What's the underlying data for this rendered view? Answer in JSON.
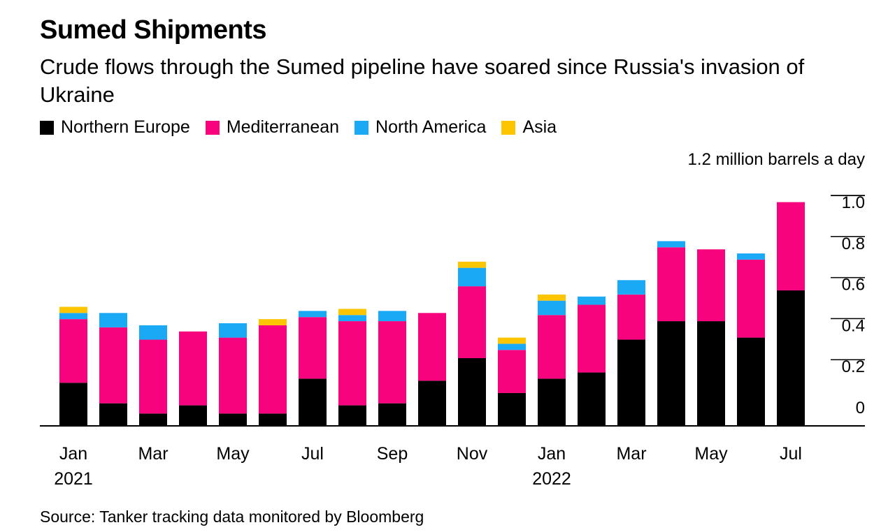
{
  "chart_data": {
    "type": "bar",
    "stacked": true,
    "title": "Sumed Shipments",
    "subtitle": "Crude flows through the Sumed pipeline have soared since Russia's invasion of Ukraine",
    "unit_label": "1.2 million barrels a day",
    "source": "Source: Tanker tracking data monitored by Bloomberg",
    "categories": [
      "Jan 2021",
      "Feb 2021",
      "Mar 2021",
      "Apr 2021",
      "May 2021",
      "Jun 2021",
      "Jul 2021",
      "Aug 2021",
      "Sep 2021",
      "Oct 2021",
      "Nov 2021",
      "Dec 2021",
      "Jan 2022",
      "Feb 2022",
      "Mar 2022",
      "Apr 2022",
      "May 2022",
      "Jun 2022",
      "Jul 2022"
    ],
    "x_tick_labels": [
      {
        "index": 0,
        "label": "Jan",
        "year": "2021"
      },
      {
        "index": 2,
        "label": "Mar",
        "year": ""
      },
      {
        "index": 4,
        "label": "May",
        "year": ""
      },
      {
        "index": 6,
        "label": "Jul",
        "year": ""
      },
      {
        "index": 8,
        "label": "Sep",
        "year": ""
      },
      {
        "index": 10,
        "label": "Nov",
        "year": ""
      },
      {
        "index": 12,
        "label": "Jan",
        "year": "2022"
      },
      {
        "index": 14,
        "label": "Mar",
        "year": ""
      },
      {
        "index": 16,
        "label": "May",
        "year": ""
      },
      {
        "index": 18,
        "label": "Jul",
        "year": ""
      }
    ],
    "y_ticks": [
      {
        "value": 0,
        "label": "0"
      },
      {
        "value": 0.2,
        "label": "0.2"
      },
      {
        "value": 0.4,
        "label": "0.4"
      },
      {
        "value": 0.6,
        "label": "0.6"
      },
      {
        "value": 0.8,
        "label": "0.8"
      },
      {
        "value": 1.0,
        "label": "1.0"
      }
    ],
    "ylim": [
      0,
      1.2
    ],
    "y_axis_side": "right",
    "grid": false,
    "legend_position": "top-left",
    "series": [
      {
        "name": "Northern Europe",
        "color": "#000000",
        "values": [
          0.21,
          0.11,
          0.06,
          0.1,
          0.06,
          0.06,
          0.23,
          0.1,
          0.11,
          0.22,
          0.33,
          0.16,
          0.23,
          0.26,
          0.42,
          0.51,
          0.51,
          0.43,
          0.66
        ]
      },
      {
        "name": "Mediterranean",
        "color": "#f7037d",
        "values": [
          0.31,
          0.37,
          0.36,
          0.36,
          0.37,
          0.43,
          0.3,
          0.41,
          0.4,
          0.33,
          0.35,
          0.21,
          0.31,
          0.33,
          0.22,
          0.36,
          0.35,
          0.38,
          0.43
        ]
      },
      {
        "name": "North America",
        "color": "#19a9f5",
        "values": [
          0.03,
          0.07,
          0.07,
          0.0,
          0.07,
          0.0,
          0.03,
          0.03,
          0.05,
          0.0,
          0.09,
          0.03,
          0.07,
          0.04,
          0.07,
          0.03,
          0.0,
          0.03,
          0.0
        ]
      },
      {
        "name": "Asia",
        "color": "#fdc400",
        "values": [
          0.03,
          0.0,
          0.0,
          0.0,
          0.0,
          0.03,
          0.0,
          0.03,
          0.0,
          0.0,
          0.03,
          0.03,
          0.03,
          0.0,
          0.0,
          0.0,
          0.0,
          0.0,
          0.0
        ]
      }
    ]
  }
}
